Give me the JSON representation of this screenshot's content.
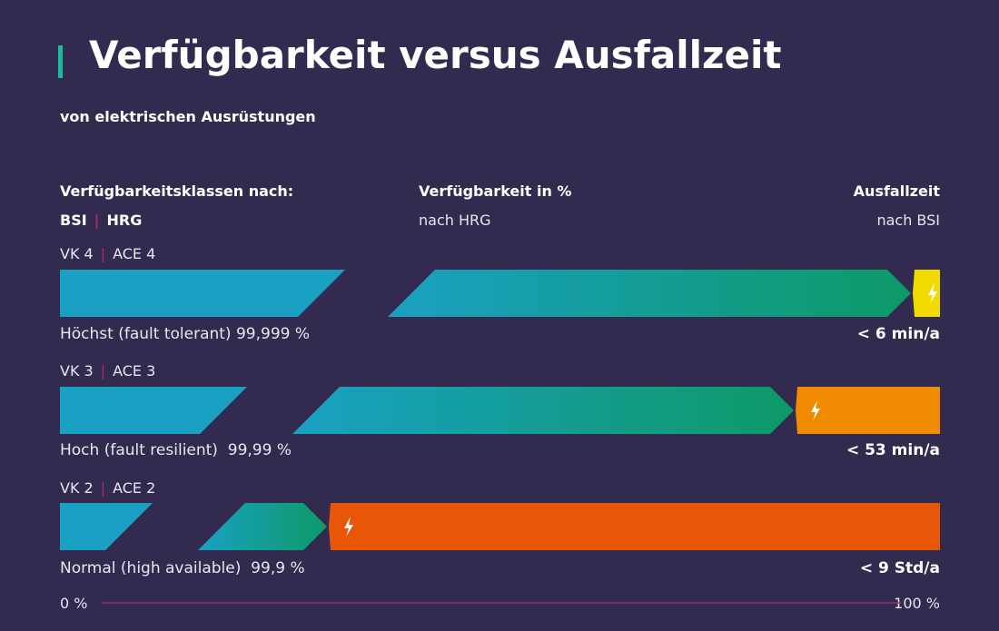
{
  "title": "Verfügbarkeit versus Ausfallzeit",
  "subtitle": "von elektrischen Ausrüstungen",
  "headers": {
    "classes": "Verfügbarkeitsklassen nach:",
    "bsi": "BSI",
    "hrg": "HRG",
    "availability": "Verfügbarkeit in %",
    "availability_sub": "nach HRG",
    "downtime": "Ausfallzeit",
    "downtime_sub": "nach BSI"
  },
  "separator": "|",
  "colors": {
    "background": "#322a4f",
    "accent": "#1abc9c",
    "bar_blue": "#1aa0c3",
    "bar_green": "#0d9a67",
    "downtime_yellow": "#f2dc00",
    "downtime_orange": "#f08a00",
    "downtime_red": "#e8560a",
    "axis_line": "#9b2a86"
  },
  "chart_data": {
    "type": "bar",
    "title": "Verfügbarkeit versus Ausfallzeit",
    "xlabel": "Verfügbarkeit in %",
    "xlim": [
      "0 %",
      "100 %"
    ],
    "rows": [
      {
        "bsi": "VK 4",
        "hrg": "ACE 4",
        "description": "Höchst (fault tolerant) 99,999 %",
        "availability_percent": 99.999,
        "downtime": "< 6 min/a",
        "downtime_color": "yellow"
      },
      {
        "bsi": "VK 3",
        "hrg": "ACE 3",
        "description": "Hoch (fault resilient)  99,99 %",
        "availability_percent": 99.99,
        "downtime": "< 53 min/a",
        "downtime_color": "orange"
      },
      {
        "bsi": "VK 2",
        "hrg": "ACE 2",
        "description": "Normal (high available)  99,9 %",
        "availability_percent": 99.9,
        "downtime": "< 9 Std/a",
        "downtime_color": "red"
      }
    ],
    "axis": {
      "min_label": "0 %",
      "max_label": "100 %"
    }
  }
}
